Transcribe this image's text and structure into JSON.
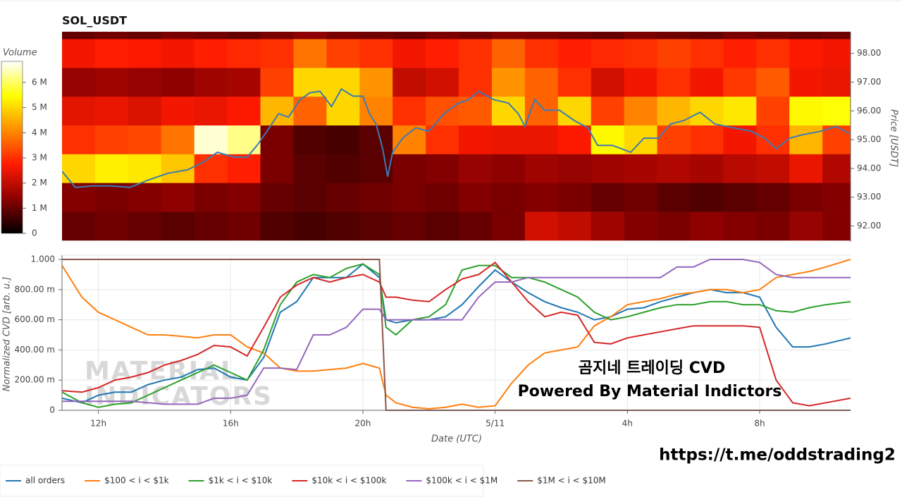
{
  "chart_data": [
    {
      "type": "heatmap",
      "title": "SOL_USDT",
      "colorbar_title": "Volume",
      "x_bins": [
        10.9,
        11.9,
        12.9,
        13.9,
        14.9,
        15.9,
        16.9,
        17.9,
        18.9,
        19.9,
        20.9,
        21.9,
        22.9,
        23.9,
        24.9,
        25.9,
        26.9,
        27.9,
        28.9,
        29.9,
        30.9,
        31.9,
        32.9,
        33.9,
        34.9
      ],
      "xlim": [
        10.9,
        34.75
      ],
      "rows": [
        92,
        93,
        94,
        95,
        96,
        97,
        98,
        99
      ],
      "z": [
        [
          1.0,
          1.1,
          1.0,
          0.9,
          1.0,
          1.1,
          0.8,
          0.7,
          0.8,
          0.9,
          1.0,
          0.9,
          1.0,
          1.2,
          2.2,
          2.0,
          1.6,
          1.3,
          1.2,
          1.4,
          1.3,
          1.2,
          1.5,
          1.3
        ],
        [
          1.3,
          1.2,
          1.3,
          1.4,
          1.2,
          1.3,
          1.0,
          0.9,
          1.0,
          1.1,
          1.2,
          1.1,
          1.3,
          1.2,
          1.3,
          1.2,
          1.0,
          1.1,
          0.9,
          0.8,
          0.9,
          1.0,
          1.2,
          1.3
        ],
        [
          5.0,
          5.3,
          5.2,
          4.8,
          3.0,
          2.8,
          1.2,
          0.9,
          0.8,
          0.9,
          1.2,
          1.3,
          1.5,
          1.4,
          1.6,
          1.5,
          1.6,
          1.7,
          1.8,
          1.7,
          1.9,
          2.0,
          2.5,
          1.8
        ],
        [
          3.0,
          3.2,
          3.3,
          3.8,
          6.6,
          6.2,
          1.2,
          0.8,
          0.7,
          0.9,
          4.0,
          3.0,
          2.6,
          2.5,
          2.5,
          2.7,
          5.4,
          5.0,
          3.2,
          3.0,
          2.6,
          3.0,
          4.6,
          3.2
        ],
        [
          2.4,
          2.5,
          2.3,
          2.6,
          2.5,
          2.7,
          4.6,
          3.6,
          5.0,
          4.0,
          3.0,
          3.4,
          3.5,
          5.0,
          3.6,
          5.0,
          3.2,
          4.0,
          4.6,
          5.0,
          5.2,
          3.2,
          5.4,
          5.5
        ],
        [
          1.5,
          1.6,
          1.5,
          1.4,
          1.6,
          1.7,
          3.2,
          5.0,
          5.0,
          4.2,
          2.0,
          2.2,
          3.0,
          4.2,
          3.6,
          3.0,
          2.2,
          2.6,
          3.0,
          2.6,
          3.1,
          3.5,
          2.6,
          2.5
        ],
        [
          2.6,
          2.8,
          2.7,
          2.6,
          2.8,
          2.9,
          3.0,
          3.8,
          3.2,
          3.0,
          2.6,
          2.8,
          3.0,
          3.6,
          3.0,
          2.8,
          2.9,
          3.0,
          3.2,
          3.0,
          2.8,
          3.0,
          2.7,
          2.6
        ],
        [
          1.0,
          1.1,
          1.0,
          1.2,
          1.1,
          1.0,
          1.2,
          1.4,
          1.2,
          1.1,
          1.0,
          1.2,
          1.1,
          1.3,
          1.2,
          1.1,
          1.0,
          1.2,
          1.1,
          1.0,
          1.2,
          1.1,
          1.0,
          1.1
        ]
      ],
      "clim": [
        0,
        6.84
      ],
      "cticks": [
        0,
        {
          "value": 1,
          "label": "1 M"
        },
        {
          "value": 2,
          "label": "2 M"
        },
        {
          "value": 3,
          "label": "3 M"
        },
        {
          "value": 4,
          "label": "4 M"
        },
        {
          "value": 5,
          "label": "5 M"
        },
        {
          "value": 6,
          "label": "6 M"
        }
      ],
      "colormap": [
        "#000000",
        "#8b0000",
        "#ff1a00",
        "#ff8c00",
        "#ffff00",
        "#ffffff"
      ],
      "line": {
        "color": "#3b7bb5",
        "x": [
          10.9,
          11.3,
          11.8,
          12.4,
          12.95,
          13.5,
          14.1,
          14.7,
          15.2,
          15.6,
          16.1,
          16.5,
          16.8,
          17.1,
          17.45,
          17.75,
          18.1,
          18.4,
          18.7,
          19.05,
          19.35,
          19.7,
          20.0,
          20.2,
          20.4,
          20.6,
          20.75,
          20.9,
          21.2,
          21.6,
          22.0,
          22.45,
          22.9,
          23.2,
          23.5,
          23.95,
          24.4,
          24.7,
          24.9,
          25.2,
          25.5,
          25.95,
          26.4,
          26.8,
          27.1,
          27.55,
          28.1,
          28.5,
          28.95,
          29.3,
          29.7,
          30.2,
          30.65,
          31.2,
          31.75,
          32.15,
          32.5,
          32.9,
          33.3,
          33.85,
          34.3,
          34.7
        ],
        "values": [
          93.9,
          93.34,
          93.39,
          93.39,
          93.34,
          93.59,
          93.83,
          93.95,
          94.24,
          94.56,
          94.39,
          94.39,
          94.8,
          95.29,
          95.9,
          95.78,
          96.39,
          96.63,
          96.68,
          96.15,
          96.76,
          96.51,
          96.51,
          95.9,
          95.54,
          94.68,
          93.71,
          94.56,
          95.05,
          95.41,
          95.29,
          95.9,
          96.27,
          96.39,
          96.68,
          96.39,
          96.27,
          95.9,
          95.46,
          96.39,
          96.02,
          96.02,
          95.66,
          95.41,
          94.8,
          94.8,
          94.56,
          95.05,
          95.05,
          95.54,
          95.66,
          95.95,
          95.54,
          95.41,
          95.29,
          95.05,
          94.68,
          95.05,
          95.17,
          95.29,
          95.46,
          95.22
        ]
      },
      "y2lim": [
        91.45,
        98.75
      ],
      "y2ticks": [
        {
          "value": 92,
          "label": "92.00"
        },
        {
          "value": 93,
          "label": "93.00"
        },
        {
          "value": 94,
          "label": "94.00"
        },
        {
          "value": 95,
          "label": "95.00"
        },
        {
          "value": 96,
          "label": "96.00"
        },
        {
          "value": 97,
          "label": "97.00"
        },
        {
          "value": 98,
          "label": "98.00"
        }
      ],
      "y2label": "Price [USDT]"
    },
    {
      "type": "line",
      "xlabel": "Date (UTC)",
      "ylabel": "Normalized CVD [arb. u.]",
      "x": [
        10.9,
        11.5,
        12,
        12.5,
        13,
        13.5,
        14,
        14.5,
        15,
        15.5,
        16,
        16.5,
        17,
        17.5,
        18,
        18.5,
        19,
        19.5,
        20,
        20.5,
        20.7,
        21,
        21.5,
        22,
        22.5,
        23,
        23.5,
        24,
        24.5,
        25,
        25.5,
        26,
        26.5,
        27,
        27.5,
        28,
        28.5,
        29,
        29.5,
        30,
        30.5,
        31,
        31.5,
        32,
        32.5,
        33,
        33.5,
        34,
        34.75
      ],
      "xlim": [
        10.9,
        34.75
      ],
      "xticks": [
        {
          "value": 12,
          "label": "12h"
        },
        {
          "value": 16,
          "label": "16h"
        },
        {
          "value": 20,
          "label": "20h"
        },
        {
          "value": 24,
          "label": "5/11"
        },
        {
          "value": 28,
          "label": "4h"
        },
        {
          "value": 32,
          "label": "8h"
        }
      ],
      "ylim": [
        0,
        1
      ],
      "yticks": [
        0,
        {
          "value": 0.2,
          "label": "200.00 m"
        },
        {
          "value": 0.4,
          "label": "400.00 m"
        },
        {
          "value": 0.6,
          "label": "600.00 m"
        },
        {
          "value": 0.8,
          "label": "800.00 m"
        },
        {
          "value": 1,
          "label": "1.000"
        }
      ],
      "grid": true,
      "legend": "bottom-left",
      "series": [
        {
          "name": "all orders",
          "color": "#1f77b4",
          "values": [
            0.08,
            0.05,
            0.1,
            0.12,
            0.12,
            0.17,
            0.2,
            0.22,
            0.27,
            0.28,
            0.22,
            0.2,
            0.35,
            0.65,
            0.72,
            0.88,
            0.88,
            0.88,
            0.97,
            0.88,
            0.6,
            0.58,
            0.6,
            0.6,
            0.62,
            0.7,
            0.82,
            0.93,
            0.85,
            0.78,
            0.72,
            0.68,
            0.65,
            0.6,
            0.62,
            0.67,
            0.68,
            0.72,
            0.75,
            0.78,
            0.8,
            0.78,
            0.78,
            0.75,
            0.55,
            0.42,
            0.42,
            0.44,
            0.48
          ]
        },
        {
          "name": "$100 < i < $1k",
          "color": "#ff7f0e",
          "values": [
            0.96,
            0.75,
            0.65,
            0.6,
            0.55,
            0.5,
            0.5,
            0.49,
            0.48,
            0.5,
            0.5,
            0.42,
            0.38,
            0.28,
            0.26,
            0.26,
            0.27,
            0.28,
            0.31,
            0.28,
            0.1,
            0.05,
            0.02,
            0.01,
            0.02,
            0.04,
            0.02,
            0.03,
            0.18,
            0.3,
            0.38,
            0.4,
            0.42,
            0.56,
            0.62,
            0.7,
            0.72,
            0.74,
            0.77,
            0.78,
            0.8,
            0.8,
            0.78,
            0.8,
            0.88,
            0.9,
            0.92,
            0.95,
            1.0
          ]
        },
        {
          "name": "$1k < i < $10k",
          "color": "#2ca02c",
          "values": [
            0.12,
            0.05,
            0.02,
            0.04,
            0.05,
            0.1,
            0.15,
            0.2,
            0.25,
            0.3,
            0.25,
            0.2,
            0.4,
            0.7,
            0.85,
            0.9,
            0.88,
            0.94,
            0.97,
            0.9,
            0.55,
            0.5,
            0.6,
            0.62,
            0.7,
            0.93,
            0.96,
            0.96,
            0.88,
            0.88,
            0.85,
            0.8,
            0.75,
            0.65,
            0.6,
            0.62,
            0.65,
            0.68,
            0.7,
            0.7,
            0.72,
            0.72,
            0.7,
            0.7,
            0.66,
            0.65,
            0.68,
            0.7,
            0.72
          ]
        },
        {
          "name": "$10k < i < $100k",
          "color": "#d62728",
          "values": [
            0.13,
            0.12,
            0.15,
            0.2,
            0.22,
            0.25,
            0.3,
            0.33,
            0.37,
            0.43,
            0.42,
            0.36,
            0.55,
            0.75,
            0.83,
            0.88,
            0.85,
            0.88,
            0.9,
            0.85,
            0.75,
            0.75,
            0.73,
            0.72,
            0.8,
            0.87,
            0.9,
            0.98,
            0.85,
            0.72,
            0.62,
            0.65,
            0.63,
            0.45,
            0.44,
            0.48,
            0.5,
            0.52,
            0.54,
            0.56,
            0.56,
            0.56,
            0.56,
            0.55,
            0.2,
            0.05,
            0.03,
            0.05,
            0.08
          ]
        },
        {
          "name": "$100k < i < $1M",
          "color": "#9467bd",
          "values": [
            0.06,
            0.06,
            0.06,
            0.06,
            0.06,
            0.05,
            0.04,
            0.04,
            0.04,
            0.08,
            0.08,
            0.1,
            0.28,
            0.28,
            0.27,
            0.5,
            0.5,
            0.55,
            0.67,
            0.67,
            0.6,
            0.6,
            0.6,
            0.6,
            0.6,
            0.6,
            0.75,
            0.85,
            0.85,
            0.88,
            0.88,
            0.88,
            0.88,
            0.88,
            0.88,
            0.88,
            0.88,
            0.88,
            0.95,
            0.95,
            1.0,
            1.0,
            1.0,
            0.98,
            0.9,
            0.88,
            0.88,
            0.88,
            0.88
          ]
        },
        {
          "name": "$1M < i < $10M",
          "color": "#8c564b",
          "values": [
            1,
            1,
            1,
            1,
            1,
            1,
            1,
            1,
            1,
            1,
            1,
            1,
            1,
            1,
            1,
            1,
            1,
            1,
            1,
            1,
            0,
            0,
            0,
            0,
            0,
            0,
            0,
            0,
            0,
            0,
            0,
            0,
            0,
            0,
            0,
            0,
            0,
            0,
            0,
            0,
            0,
            0,
            0,
            0,
            0,
            0,
            0,
            0,
            0
          ]
        }
      ],
      "watermark": [
        "MATERIAL",
        "INDICATORS"
      ],
      "annotations": [
        "곰지네 트레이딩 CVD",
        "Powered By Material Indictors"
      ],
      "link": "https://t.me/oddstrading2"
    }
  ]
}
